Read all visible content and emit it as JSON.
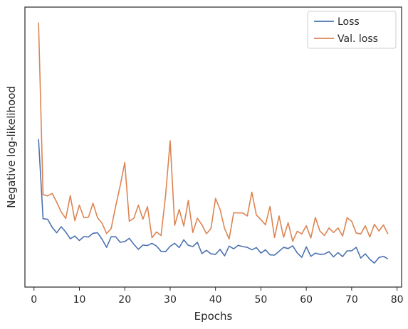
{
  "chart_data": {
    "type": "line",
    "title": "",
    "xlabel": "Epochs",
    "ylabel": "Negative log-likelihood",
    "xlim": [
      -2,
      81
    ],
    "ylim": [
      0,
      100
    ],
    "xticks": [
      0,
      10,
      20,
      30,
      40,
      50,
      60,
      70,
      80
    ],
    "yticks_visible": false,
    "grid": false,
    "legend_position": "top-right",
    "x": [
      1,
      2,
      3,
      4,
      5,
      6,
      7,
      8,
      9,
      10,
      11,
      12,
      13,
      14,
      15,
      16,
      17,
      18,
      19,
      20,
      21,
      22,
      23,
      24,
      25,
      26,
      27,
      28,
      29,
      30,
      31,
      32,
      33,
      34,
      35,
      36,
      37,
      38,
      39,
      40,
      41,
      42,
      43,
      44,
      45,
      46,
      47,
      48,
      49,
      50,
      51,
      52,
      53,
      54,
      55,
      56,
      57,
      58,
      59,
      60,
      61,
      62,
      63,
      64,
      65,
      66,
      67,
      68,
      69,
      70,
      71,
      72,
      73,
      74,
      75,
      76,
      77,
      78
    ],
    "series": [
      {
        "name": "Loss",
        "color": "#4c72b0",
        "values": [
          53.0,
          21.3,
          21.1,
          17.9,
          15.7,
          18.1,
          16.0,
          13.3,
          14.4,
          12.6,
          14.2,
          14.0,
          15.5,
          15.7,
          13.1,
          9.9,
          14.1,
          14.1,
          11.9,
          12.2,
          13.5,
          11.1,
          9.1,
          10.8,
          10.6,
          11.5,
          10.4,
          8.3,
          8.2,
          10.3,
          11.5,
          9.8,
          12.9,
          10.7,
          10.2,
          11.9,
          7.4,
          8.7,
          7.3,
          7.1,
          9.1,
          6.5,
          10.4,
          9.3,
          10.7,
          10.2,
          9.9,
          8.9,
          9.8,
          7.6,
          8.9,
          6.9,
          6.8,
          8.3,
          9.9,
          9.4,
          10.5,
          7.7,
          5.9,
          10.1,
          6.3,
          7.6,
          7.1,
          7.2,
          8.2,
          6.1,
          7.8,
          6.2,
          8.5,
          8.5,
          9.9,
          5.6,
          7.3,
          5.1,
          3.6,
          5.8,
          6.3,
          5.3
        ]
      },
      {
        "name": "Val. loss",
        "color": "#dd8452",
        "values": [
          99.5,
          30.9,
          30.4,
          31.4,
          27.9,
          24.0,
          21.4,
          30.5,
          20.5,
          26.7,
          21.7,
          21.9,
          27.5,
          21.7,
          19.5,
          15.4,
          17.4,
          26.3,
          34.5,
          43.7,
          20.3,
          21.5,
          26.7,
          21.1,
          26.1,
          13.7,
          16.0,
          14.6,
          30.7,
          52.4,
          18.7,
          25.0,
          18.4,
          28.6,
          15.8,
          21.5,
          18.9,
          15.3,
          17.4,
          29.4,
          25.0,
          17.4,
          13.2,
          23.7,
          23.6,
          23.6,
          22.4,
          31.9,
          22.8,
          20.9,
          18.9,
          26.2,
          13.8,
          22.4,
          13.9,
          19.7,
          12.3,
          16.3,
          15.2,
          18.5,
          13.6,
          21.8,
          16.4,
          14.6,
          17.6,
          15.8,
          17.6,
          14.4,
          21.7,
          20.3,
          15.6,
          15.2,
          18.5,
          14.0,
          19.1,
          16.4,
          18.8,
          15.2
        ]
      }
    ]
  }
}
